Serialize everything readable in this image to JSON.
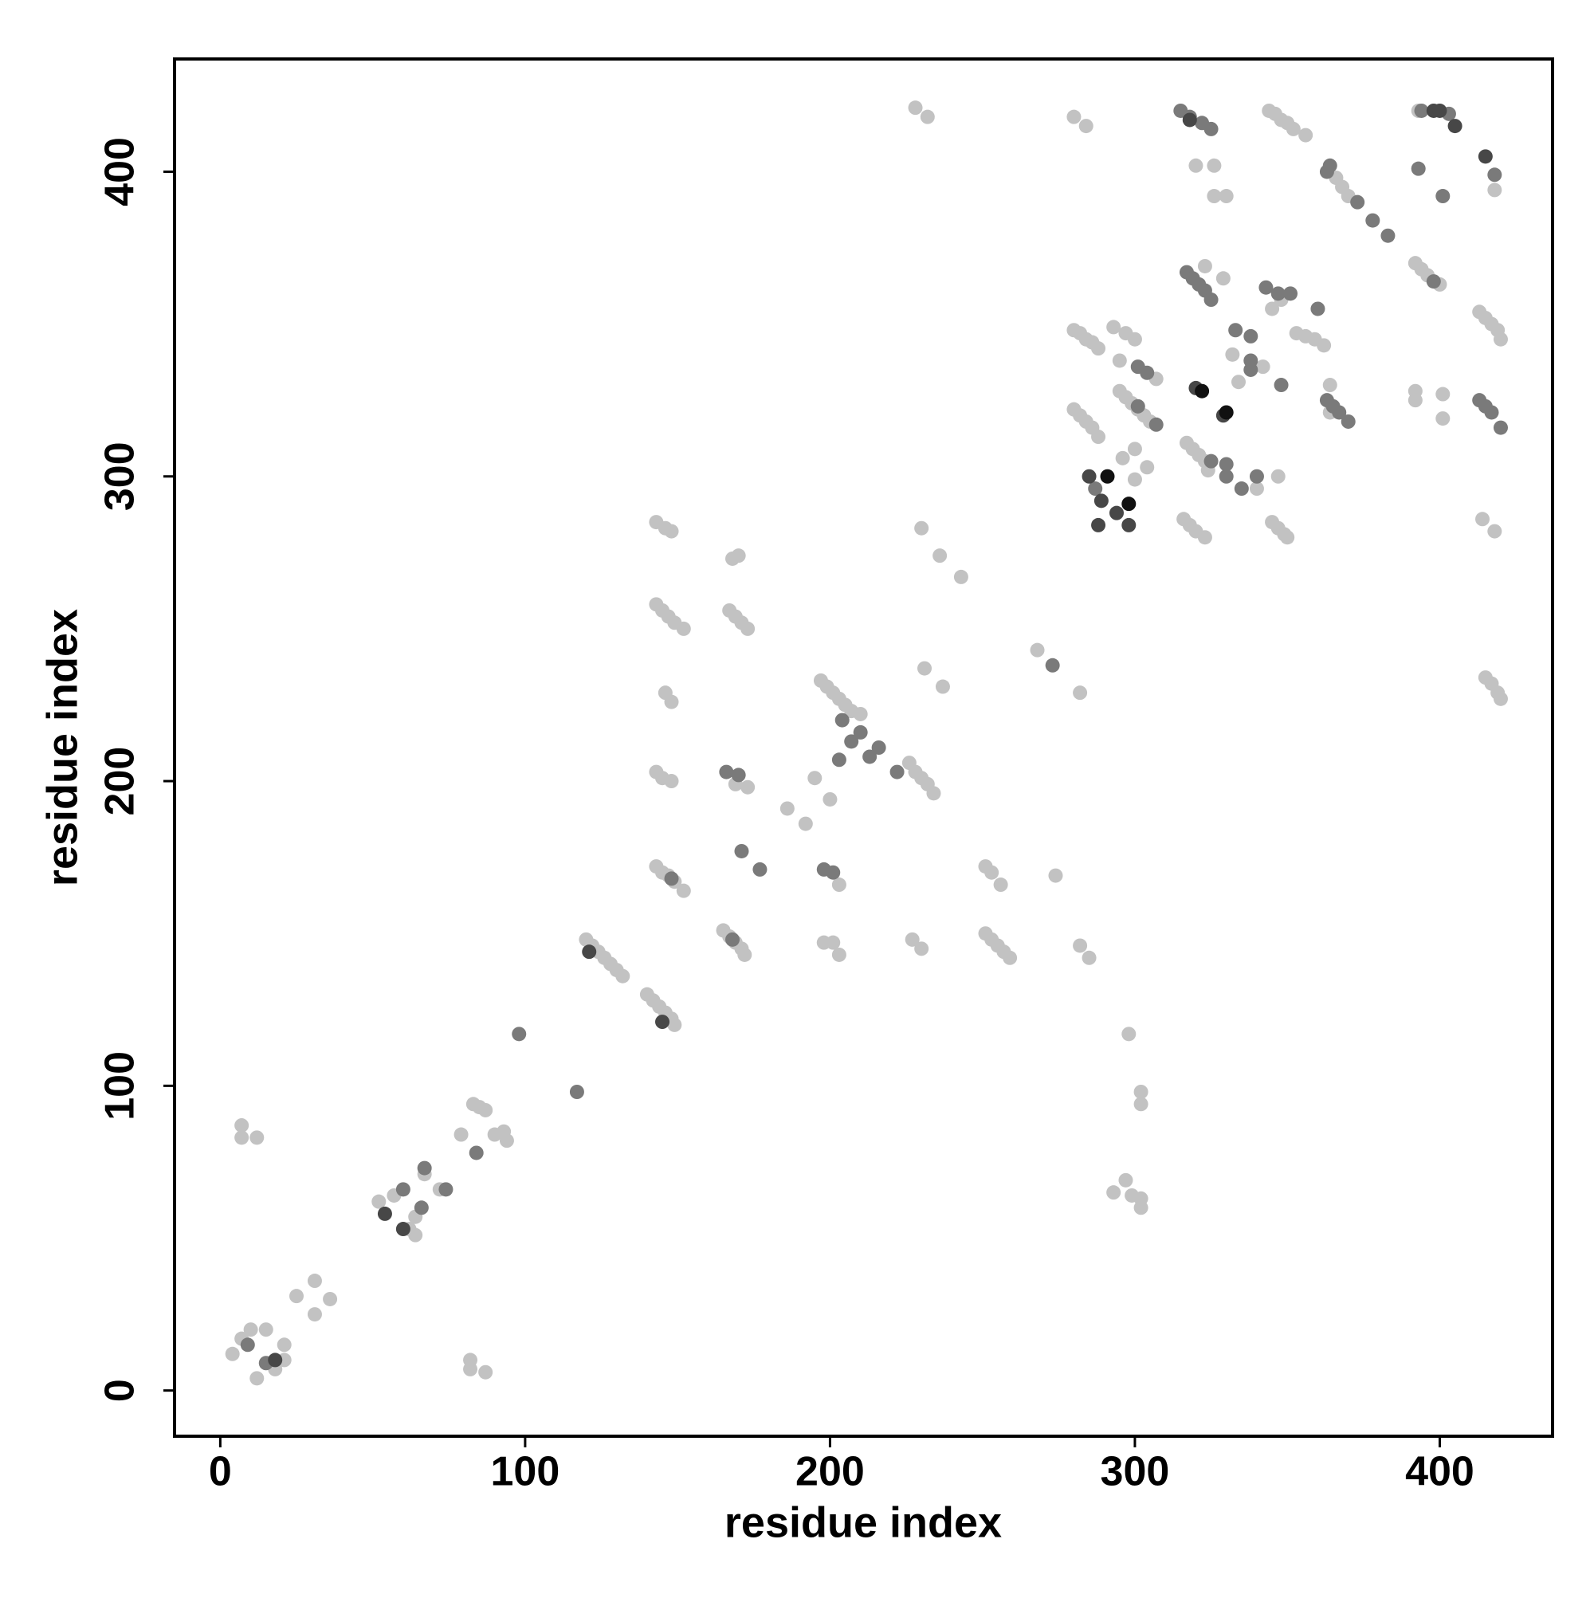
{
  "chart_data": {
    "type": "scatter",
    "xlabel": "residue index",
    "ylabel": "residue index",
    "xlim": [
      -15,
      437
    ],
    "ylim": [
      -15,
      437
    ],
    "xticks": [
      0,
      100,
      200,
      300,
      400
    ],
    "yticks": [
      0,
      100,
      200,
      300,
      400
    ],
    "series": [
      {
        "color": "#c2c2c2",
        "x": [
          4,
          7,
          10,
          15,
          12,
          18,
          21,
          21,
          25,
          31,
          31,
          36,
          7,
          7,
          12,
          52,
          57,
          62,
          64,
          64,
          67,
          72,
          79,
          83,
          85,
          87,
          93,
          94,
          90,
          82,
          82,
          87,
          120,
          122,
          124,
          126,
          128,
          130,
          132,
          140,
          142,
          144,
          146,
          148,
          149,
          143,
          145,
          147,
          149,
          152,
          143,
          145,
          148,
          146,
          148,
          143,
          145,
          147,
          149,
          152,
          143,
          146,
          148,
          165,
          167,
          169,
          171,
          172,
          169,
          173,
          168,
          170,
          167,
          169,
          171,
          173,
          186,
          192,
          195,
          200,
          203,
          198,
          201,
          203,
          197,
          199,
          201,
          203,
          205,
          207,
          210,
          226,
          228,
          230,
          232,
          234,
          227,
          230,
          228,
          232,
          230,
          231,
          236,
          237,
          243,
          251,
          253,
          256,
          251,
          253,
          255,
          257,
          259,
          268,
          274,
          282,
          285,
          282,
          280,
          284,
          280,
          282,
          284,
          286,
          288,
          280,
          282,
          284,
          286,
          288,
          298,
          302,
          302,
          297,
          293,
          299,
          302,
          302,
          293,
          297,
          300,
          295,
          297,
          299,
          301,
          303,
          305,
          307,
          300,
          304,
          296,
          300,
          295,
          320,
          326,
          326,
          330,
          323,
          329,
          317,
          319,
          321,
          323,
          324,
          316,
          318,
          320,
          323,
          332,
          334,
          342,
          340,
          344,
          346,
          348,
          350,
          352,
          356,
          345,
          348,
          347,
          345,
          347,
          349,
          350,
          353,
          356,
          359,
          362,
          364,
          364,
          366,
          368,
          370,
          392,
          394,
          396,
          400,
          392,
          392,
          401,
          401,
          393,
          418,
          413,
          415,
          417,
          419,
          420,
          414,
          418,
          415,
          417,
          419,
          420
        ],
        "values": [
          12,
          17,
          20,
          20,
          4,
          7,
          10,
          15,
          31,
          36,
          25,
          30,
          87,
          83,
          83,
          62,
          64,
          53,
          51,
          57,
          71,
          66,
          84,
          94,
          93,
          92,
          85,
          82,
          84,
          10,
          7,
          6,
          148,
          146,
          144,
          142,
          140,
          138,
          136,
          130,
          128,
          126,
          124,
          122,
          120,
          172,
          170,
          169,
          167,
          164,
          203,
          201,
          200,
          229,
          226,
          258,
          256,
          254,
          252,
          250,
          285,
          283,
          282,
          151,
          149,
          147,
          145,
          143,
          199,
          198,
          273,
          274,
          256,
          254,
          252,
          250,
          191,
          186,
          201,
          194,
          166,
          147,
          147,
          143,
          233,
          231,
          229,
          227,
          225,
          223,
          222,
          206,
          203,
          201,
          199,
          196,
          148,
          145,
          421,
          418,
          283,
          237,
          274,
          231,
          267,
          172,
          170,
          166,
          150,
          148,
          146,
          144,
          142,
          243,
          169,
          146,
          142,
          229,
          418,
          415,
          348,
          347,
          345,
          344,
          342,
          322,
          320,
          318,
          316,
          313,
          117,
          98,
          94,
          69,
          65,
          64,
          63,
          60,
          349,
          347,
          345,
          328,
          326,
          324,
          322,
          320,
          318,
          332,
          299,
          303,
          306,
          309,
          338,
          402,
          402,
          392,
          392,
          369,
          365,
          311,
          309,
          307,
          305,
          302,
          286,
          284,
          282,
          280,
          340,
          331,
          336,
          296,
          420,
          419,
          417,
          416,
          414,
          412,
          355,
          358,
          300,
          285,
          283,
          281,
          280,
          347,
          346,
          345,
          343,
          330,
          321,
          398,
          395,
          392,
          370,
          368,
          366,
          363,
          328,
          325,
          327,
          319,
          420,
          394,
          354,
          352,
          350,
          348,
          345,
          286,
          282,
          234,
          232,
          229,
          227
        ]
      },
      {
        "color": "#7a7a7a",
        "x": [
          9,
          15,
          60,
          66,
          67,
          74,
          84,
          98,
          117,
          148,
          166,
          170,
          168,
          171,
          177,
          198,
          201,
          204,
          203,
          207,
          210,
          213,
          216,
          222,
          273,
          287,
          301,
          304,
          301,
          307,
          315,
          318,
          322,
          325,
          317,
          319,
          321,
          323,
          325,
          325,
          330,
          330,
          335,
          333,
          338,
          338,
          338,
          340,
          343,
          347,
          351,
          348,
          360,
          363,
          365,
          367,
          370,
          363,
          364,
          373,
          378,
          383,
          398,
          393,
          401,
          418,
          413,
          415,
          417,
          420,
          394,
          403
        ],
        "values": [
          15,
          9,
          66,
          60,
          73,
          66,
          78,
          117,
          98,
          168,
          203,
          202,
          148,
          177,
          171,
          171,
          170,
          220,
          207,
          213,
          216,
          208,
          211,
          203,
          238,
          296,
          336,
          334,
          323,
          317,
          420,
          418,
          416,
          414,
          367,
          365,
          363,
          361,
          358,
          305,
          304,
          300,
          296,
          348,
          346,
          335,
          338,
          300,
          362,
          360,
          360,
          330,
          355,
          325,
          323,
          321,
          318,
          400,
          402,
          390,
          384,
          379,
          364,
          401,
          392,
          399,
          325,
          323,
          321,
          316,
          420,
          419
        ]
      },
      {
        "color": "#474747",
        "x": [
          18,
          54,
          60,
          121,
          145,
          285,
          289,
          288,
          294,
          298,
          318,
          329,
          320,
          398,
          405,
          415,
          400
        ],
        "values": [
          10,
          58,
          53,
          144,
          121,
          300,
          292,
          284,
          288,
          284,
          417,
          320,
          329,
          420,
          415,
          405,
          420
        ]
      },
      {
        "color": "#111111",
        "x": [
          291,
          298,
          322,
          330
        ],
        "values": [
          300,
          291,
          328,
          321
        ]
      }
    ]
  }
}
